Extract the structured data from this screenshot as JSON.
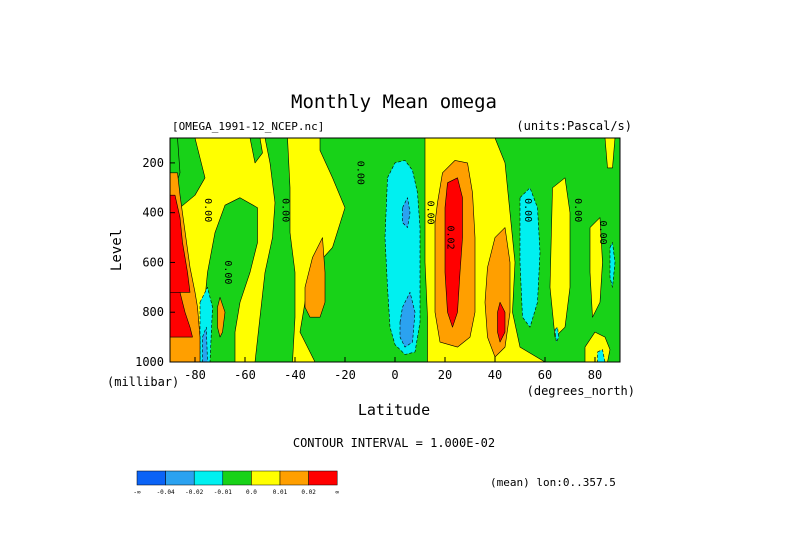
{
  "chart_data": {
    "type": "heatmap",
    "title": "Monthly Mean omega",
    "subtitle_left": "[OMEGA_1991-12_NCEP.nc]",
    "subtitle_right": "(units:Pascal/s)",
    "xlabel": "Latitude",
    "ylabel": "Level",
    "x_unit_label": "(degrees_north)",
    "y_unit_label": "(millibar)",
    "xlim": [
      -90,
      90
    ],
    "ylim": [
      1000,
      100
    ],
    "x_ticks": [
      -80,
      -60,
      -40,
      -20,
      0,
      20,
      40,
      60,
      80
    ],
    "y_ticks": [
      200,
      400,
      600,
      800,
      1000
    ],
    "contour_interval_text": "CONTOUR INTERVAL = 1.000E-02",
    "footer_text": "(mean) lon:0..357.5",
    "contour_labels": [
      {
        "x": -76,
        "y": 390,
        "text": "0.00"
      },
      {
        "x": -68,
        "y": 640,
        "text": "0.00"
      },
      {
        "x": -45,
        "y": 390,
        "text": "0.00"
      },
      {
        "x": -15,
        "y": 240,
        "text": "0.00"
      },
      {
        "x": 13,
        "y": 400,
        "text": "0.00"
      },
      {
        "x": 21,
        "y": 500,
        "text": "0.02"
      },
      {
        "x": 52,
        "y": 390,
        "text": "0.00"
      },
      {
        "x": 72,
        "y": 390,
        "text": "0.00"
      },
      {
        "x": 82,
        "y": 480,
        "text": "0.00"
      }
    ],
    "colorbar": {
      "colors": [
        "#0b63f6",
        "#2ba2f0",
        "#00f0f0",
        "#18d218",
        "#ffff00",
        "#ff9f00",
        "#ff0000"
      ],
      "labels": [
        "-∞",
        "-0.04",
        "-0.02",
        "-0.01",
        "0.0",
        "0.01",
        "0.02",
        "∞"
      ]
    },
    "regions": [
      {
        "level": "positive",
        "color": "#ffff00",
        "points": [
          [
            -90,
            100
          ],
          [
            90,
            100
          ],
          [
            90,
            1000
          ],
          [
            -90,
            1000
          ]
        ]
      },
      {
        "level": "zero",
        "color": "#18d218",
        "points": [
          [
            -90,
            100
          ],
          [
            -80,
            100
          ],
          [
            -78,
            180
          ],
          [
            -76,
            260
          ],
          [
            -80,
            330
          ],
          [
            -86,
            380
          ],
          [
            -90,
            380
          ]
        ]
      },
      {
        "level": "zero",
        "color": "#18d218",
        "points": [
          [
            -76,
            1000
          ],
          [
            -77,
            850
          ],
          [
            -75,
            640
          ],
          [
            -72,
            480
          ],
          [
            -68,
            370
          ],
          [
            -62,
            340
          ],
          [
            -55,
            380
          ],
          [
            -55,
            520
          ],
          [
            -58,
            640
          ],
          [
            -62,
            760
          ],
          [
            -64,
            880
          ],
          [
            -64,
            1000
          ]
        ]
      },
      {
        "level": "zero",
        "color": "#18d218",
        "points": [
          [
            -58,
            100
          ],
          [
            -54,
            100
          ],
          [
            -53,
            160
          ],
          [
            -56,
            200
          ]
        ]
      },
      {
        "level": "zero",
        "color": "#18d218",
        "points": [
          [
            -56,
            1000
          ],
          [
            -54,
            820
          ],
          [
            -52,
            640
          ],
          [
            -49,
            500
          ],
          [
            -48,
            360
          ],
          [
            -50,
            200
          ],
          [
            -52,
            100
          ],
          [
            -43,
            100
          ],
          [
            -42,
            300
          ],
          [
            -42,
            480
          ],
          [
            -40,
            640
          ],
          [
            -40,
            820
          ],
          [
            -41,
            1000
          ]
        ]
      },
      {
        "level": "zero",
        "color": "#18d218",
        "points": [
          [
            -30,
            100
          ],
          [
            -8,
            100
          ],
          [
            5,
            100
          ],
          [
            12,
            100
          ],
          [
            12,
            400
          ],
          [
            12,
            600
          ],
          [
            13,
            820
          ],
          [
            13,
            1000
          ],
          [
            -32,
            1000
          ],
          [
            -38,
            880
          ],
          [
            -36,
            760
          ],
          [
            -34,
            640
          ],
          [
            -25,
            540
          ],
          [
            -20,
            380
          ],
          [
            -25,
            260
          ],
          [
            -30,
            150
          ]
        ]
      },
      {
        "level": "zero",
        "color": "#18d218",
        "points": [
          [
            40,
            100
          ],
          [
            90,
            100
          ],
          [
            90,
            1000
          ],
          [
            60,
            1000
          ],
          [
            50,
            940
          ],
          [
            47,
            800
          ],
          [
            48,
            600
          ],
          [
            46,
            400
          ],
          [
            44,
            200
          ]
        ]
      },
      {
        "level": "positive",
        "color": "#ffff00",
        "points": [
          [
            63,
            300
          ],
          [
            68,
            260
          ],
          [
            70,
            400
          ],
          [
            70,
            700
          ],
          [
            68,
            860
          ],
          [
            64,
            900
          ],
          [
            62,
            700
          ]
        ]
      },
      {
        "level": "positive",
        "color": "#ffff00",
        "points": [
          [
            78,
            460
          ],
          [
            82,
            420
          ],
          [
            83,
            600
          ],
          [
            82,
            760
          ],
          [
            79,
            820
          ],
          [
            78,
            640
          ]
        ]
      },
      {
        "level": "positive",
        "color": "#ffff00",
        "points": [
          [
            76,
            940
          ],
          [
            80,
            880
          ],
          [
            84,
            900
          ],
          [
            86,
            950
          ],
          [
            85,
            1000
          ],
          [
            76,
            1000
          ]
        ]
      },
      {
        "level": "positive",
        "color": "#ffff00",
        "points": [
          [
            84,
            100
          ],
          [
            88,
            100
          ],
          [
            87,
            220
          ],
          [
            85,
            220
          ]
        ]
      },
      {
        "level": "zero",
        "color": "#18d218",
        "points": [
          [
            -90,
            100
          ],
          [
            -87,
            100
          ],
          [
            -86,
            240
          ],
          [
            -88,
            300
          ],
          [
            -90,
            300
          ]
        ]
      },
      {
        "level": "negative",
        "color": "#00f0f0",
        "points": [
          [
            -3,
            260
          ],
          [
            0,
            200
          ],
          [
            4,
            190
          ],
          [
            7,
            230
          ],
          [
            9,
            320
          ],
          [
            10,
            460
          ],
          [
            10,
            640
          ],
          [
            10,
            840
          ],
          [
            8,
            960
          ],
          [
            4,
            970
          ],
          [
            0,
            930
          ],
          [
            -2,
            860
          ],
          [
            -3,
            700
          ],
          [
            -4,
            500
          ]
        ]
      },
      {
        "level": "negative",
        "color": "#00f0f0",
        "points": [
          [
            50,
            340
          ],
          [
            54,
            300
          ],
          [
            57,
            380
          ],
          [
            58,
            560
          ],
          [
            57,
            760
          ],
          [
            54,
            860
          ],
          [
            51,
            820
          ],
          [
            50,
            600
          ]
        ]
      },
      {
        "level": "negative",
        "color": "#00f0f0",
        "points": [
          [
            -78,
            760
          ],
          [
            -75,
            700
          ],
          [
            -73,
            780
          ],
          [
            -74,
            1000
          ],
          [
            -78,
            1000
          ]
        ]
      },
      {
        "level": "negative",
        "color": "#00f0f0",
        "points": [
          [
            86,
            540
          ],
          [
            87,
            520
          ],
          [
            88,
            600
          ],
          [
            87,
            700
          ],
          [
            86,
            660
          ]
        ]
      },
      {
        "level": "negative",
        "color": "#00f0f0",
        "points": [
          [
            81,
            960
          ],
          [
            83,
            950
          ],
          [
            84,
            1000
          ],
          [
            81,
            1000
          ]
        ]
      },
      {
        "level": "negative",
        "color": "#00f0f0",
        "points": [
          [
            64,
            870
          ],
          [
            65,
            860
          ],
          [
            65.5,
            900
          ],
          [
            64.5,
            920
          ]
        ]
      },
      {
        "level": "neg2",
        "color": "#2ba2f0",
        "points": [
          [
            3,
            380
          ],
          [
            5,
            340
          ],
          [
            6,
            400
          ],
          [
            5,
            460
          ],
          [
            3,
            440
          ]
        ]
      },
      {
        "level": "neg2",
        "color": "#2ba2f0",
        "points": [
          [
            2,
            840
          ],
          [
            3,
            780
          ],
          [
            6,
            720
          ],
          [
            8,
            800
          ],
          [
            7,
            920
          ],
          [
            4,
            940
          ],
          [
            2,
            900
          ]
        ]
      },
      {
        "level": "neg2",
        "color": "#2ba2f0",
        "points": [
          [
            -77,
            900
          ],
          [
            -75.5,
            860
          ],
          [
            -75,
            1000
          ],
          [
            -77,
            1000
          ]
        ]
      },
      {
        "level": "pos1",
        "color": "#ff9f00",
        "points": [
          [
            -90,
            240
          ],
          [
            -87,
            240
          ],
          [
            -86,
            330
          ],
          [
            -82,
            620
          ],
          [
            -80,
            720
          ],
          [
            -79,
            780
          ],
          [
            -78,
            900
          ],
          [
            -78,
            1000
          ],
          [
            -90,
            1000
          ]
        ]
      },
      {
        "level": "pos1",
        "color": "#ff9f00",
        "points": [
          [
            -71,
            780
          ],
          [
            -70,
            740
          ],
          [
            -68,
            800
          ],
          [
            -69,
            880
          ],
          [
            -70,
            900
          ],
          [
            -71,
            860
          ]
        ]
      },
      {
        "level": "pos1",
        "color": "#ff9f00",
        "points": [
          [
            -36,
            700
          ],
          [
            -33,
            580
          ],
          [
            -29,
            500
          ],
          [
            -28,
            640
          ],
          [
            -28,
            760
          ],
          [
            -30,
            820
          ],
          [
            -34,
            820
          ],
          [
            -36,
            780
          ]
        ]
      },
      {
        "level": "pos1",
        "color": "#ff9f00",
        "points": [
          [
            17,
            360
          ],
          [
            19,
            240
          ],
          [
            24,
            190
          ],
          [
            29,
            200
          ],
          [
            31,
            320
          ],
          [
            32,
            500
          ],
          [
            32,
            620
          ],
          [
            32,
            800
          ],
          [
            30,
            900
          ],
          [
            25,
            940
          ],
          [
            18,
            920
          ],
          [
            16,
            800
          ],
          [
            16,
            600
          ],
          [
            16,
            440
          ]
        ]
      },
      {
        "level": "pos1",
        "color": "#ff9f00",
        "points": [
          [
            37,
            620
          ],
          [
            40,
            500
          ],
          [
            44,
            460
          ],
          [
            46,
            600
          ],
          [
            46,
            800
          ],
          [
            44,
            940
          ],
          [
            40,
            980
          ],
          [
            37,
            900
          ],
          [
            36,
            760
          ]
        ]
      },
      {
        "level": "pos2",
        "color": "#ff0000",
        "points": [
          [
            20,
            380
          ],
          [
            21,
            280
          ],
          [
            25,
            260
          ],
          [
            27,
            340
          ],
          [
            27,
            500
          ],
          [
            26,
            640
          ],
          [
            25,
            800
          ],
          [
            23,
            860
          ],
          [
            21,
            800
          ],
          [
            20,
            640
          ]
        ]
      },
      {
        "level": "pos2",
        "color": "#ff0000",
        "points": [
          [
            41,
            800
          ],
          [
            42,
            760
          ],
          [
            44,
            800
          ],
          [
            44,
            880
          ],
          [
            42,
            920
          ],
          [
            41,
            880
          ]
        ]
      },
      {
        "level": "pos2",
        "color": "#ff0000",
        "points": [
          [
            -90,
            330
          ],
          [
            -88,
            330
          ],
          [
            -86,
            420
          ],
          [
            -85,
            520
          ],
          [
            -83,
            640
          ],
          [
            -82,
            720
          ],
          [
            -90,
            720
          ]
        ]
      },
      {
        "level": "pos2",
        "color": "#ff0000",
        "points": [
          [
            -90,
            720
          ],
          [
            -86,
            720
          ],
          [
            -84,
            800
          ],
          [
            -82,
            860
          ],
          [
            -81,
            900
          ],
          [
            -90,
            900
          ]
        ]
      }
    ]
  }
}
